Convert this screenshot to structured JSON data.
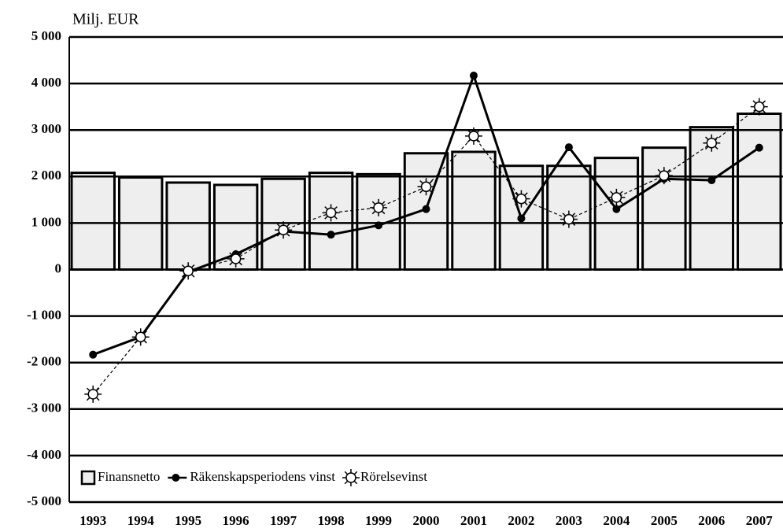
{
  "chart_data": {
    "type": "bar-line",
    "y_label": "Milj. EUR",
    "categories": [
      "1993",
      "1994",
      "1995",
      "1996",
      "1997",
      "1998",
      "1999",
      "2000",
      "2001",
      "2002",
      "2003",
      "2004",
      "2005",
      "2006",
      "2007"
    ],
    "series": [
      {
        "name": "Finansnetto",
        "type": "bar",
        "color": "#eeeeee",
        "values": [
          2080,
          1980,
          1870,
          1820,
          1950,
          2080,
          2050,
          2500,
          2530,
          2230,
          2230,
          2400,
          2620,
          3060,
          3350
        ]
      },
      {
        "name": "Räkenskapsperiodens vinst",
        "type": "line",
        "color": "#000000",
        "values": [
          -1830,
          -1450,
          -50,
          330,
          820,
          750,
          950,
          1300,
          4170,
          1100,
          2630,
          1300,
          1950,
          1920,
          2620
        ]
      },
      {
        "name": "Rörelsevinst",
        "type": "line-dashed",
        "color": "#000000",
        "values": [
          -2680,
          -1450,
          -30,
          230,
          850,
          1220,
          1330,
          1780,
          2870,
          1520,
          1080,
          1550,
          2020,
          2720,
          3500
        ]
      }
    ],
    "ylim": [
      -5000,
      5000
    ],
    "yticks": [
      {
        "value": -5000,
        "label": "-5 000"
      },
      {
        "value": -4000,
        "label": "-4 000"
      },
      {
        "value": -3000,
        "label": "-3 000"
      },
      {
        "value": -2000,
        "label": "-2 000"
      },
      {
        "value": -1000,
        "label": "-1 000"
      },
      0,
      {
        "value": 1000,
        "label": "1 000"
      },
      {
        "value": 2000,
        "label": "2 000"
      },
      {
        "value": 3000,
        "label": "3 000"
      },
      {
        "value": 4000,
        "label": "4 000"
      },
      {
        "value": 5000,
        "label": "5 000"
      }
    ],
    "grid": true,
    "legend": "lower left"
  }
}
